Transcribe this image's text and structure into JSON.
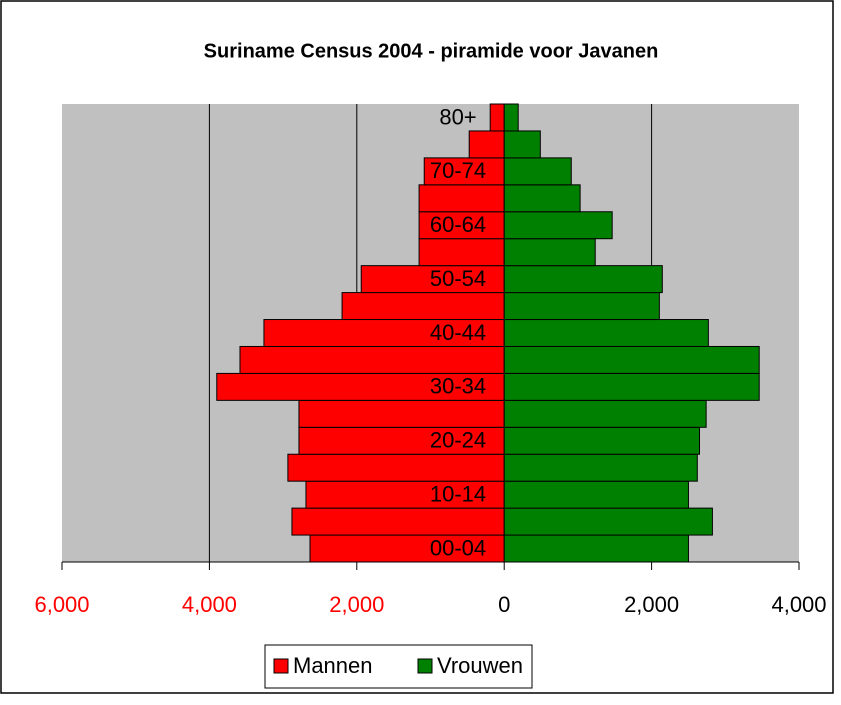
{
  "chart_data": {
    "type": "pyramid",
    "title": "Suriname Census 2004 - piramide voor Javanen",
    "categories": [
      "00-04",
      null,
      "10-14",
      null,
      "20-24",
      null,
      "30-34",
      null,
      "40-44",
      null,
      "50-54",
      null,
      "60-64",
      null,
      "70-74",
      null,
      "80+"
    ],
    "series": [
      {
        "name": "Mannen",
        "color": "#ff0000",
        "values": [
          -2635,
          -2880,
          -2690,
          -2935,
          -2785,
          -2785,
          -3900,
          -3585,
          -3260,
          -2200,
          -1940,
          -1155,
          -1155,
          -1155,
          -1085,
          -475,
          -190
        ]
      },
      {
        "name": "Vrouwen",
        "color": "#008000",
        "values": [
          2500,
          2825,
          2500,
          2620,
          2650,
          2740,
          3460,
          3460,
          2770,
          2105,
          2145,
          1235,
          1465,
          1030,
          910,
          490,
          190
        ]
      }
    ],
    "xlim": [
      -6000,
      4000
    ],
    "xticks": [
      {
        "value": -6000,
        "label": "6,000"
      },
      {
        "value": -4000,
        "label": "4,000"
      },
      {
        "value": -2000,
        "label": "2,000"
      },
      0,
      {
        "value": 2000,
        "label": "2,000"
      },
      {
        "value": 4000,
        "label": "4,000"
      }
    ],
    "negative_tick_color": "#ff0000",
    "grid": true,
    "legend": "bottom"
  }
}
